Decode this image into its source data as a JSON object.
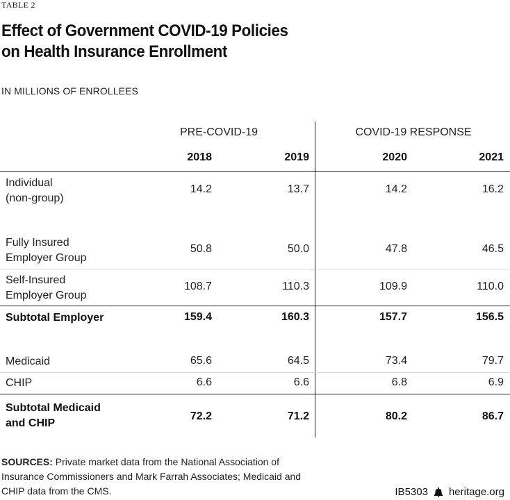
{
  "table_label": "TABLE 2",
  "title_line1": "Effect of Government COVID-19 Policies",
  "title_line2": "on Health Insurance Enrollment",
  "subtitle": "IN MILLIONS OF ENROLLEES",
  "groups": {
    "pre": "PRE-COVID-19",
    "response": "COVID-19 RESPONSE"
  },
  "years": [
    "2018",
    "2019",
    "2020",
    "2021"
  ],
  "rows": [
    {
      "label_line1": "Individual",
      "label_line2": "(non-group)",
      "values": [
        "14.2",
        "13.7",
        "14.2",
        "16.2"
      ]
    },
    {
      "label_line1": "Fully Insured",
      "label_line2": "Employer Group",
      "values": [
        "50.8",
        "50.0",
        "47.8",
        "46.5"
      ]
    },
    {
      "label_line1": "Self-Insured",
      "label_line2": "Employer Group",
      "values": [
        "108.7",
        "110.3",
        "109.9",
        "110.0"
      ]
    },
    {
      "label_line1": "Subtotal Employer",
      "label_line2": "",
      "values": [
        "159.4",
        "160.3",
        "157.7",
        "156.5"
      ]
    },
    {
      "label_line1": "Medicaid",
      "label_line2": "",
      "values": [
        "65.6",
        "64.5",
        "73.4",
        "79.7"
      ]
    },
    {
      "label_line1": "CHIP",
      "label_line2": "",
      "values": [
        "6.6",
        "6.6",
        "6.8",
        "6.9"
      ]
    },
    {
      "label_line1": "Subtotal Medicaid",
      "label_line2": "and CHIP",
      "values": [
        "72.2",
        "71.2",
        "80.2",
        "86.7"
      ]
    }
  ],
  "sources": {
    "label": "SOURCES:",
    "text": "Private market data from the National Association of Insurance Commissioners and Mark Farrah Associates; Medicaid and CHIP data from the CMS."
  },
  "footer": {
    "code": "IB5303",
    "icon": "liberty-bell-icon",
    "site": "heritage.org"
  }
}
